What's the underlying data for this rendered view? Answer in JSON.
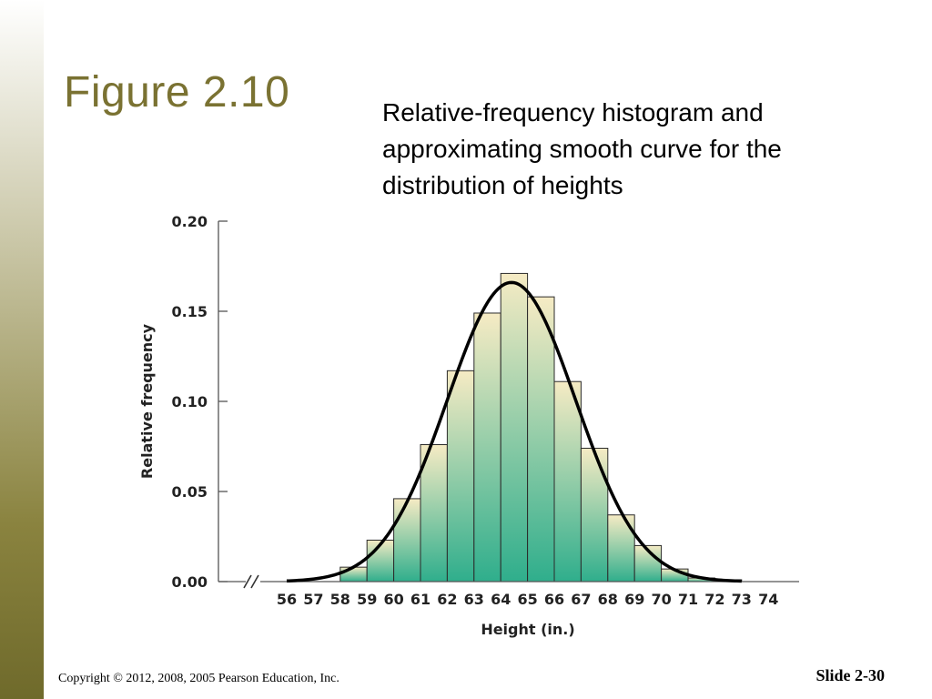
{
  "slide": {
    "title": "Figure 2.10",
    "caption": "Relative-frequency histogram and approximating smooth curve for the distribution of heights",
    "copyright": "Copyright © 2012, 2008, 2005 Pearson Education, Inc.",
    "slide_number": "Slide 2-30"
  },
  "colors": {
    "accent_band": "#8a833f",
    "title": "#7a7232",
    "bar_top": "#f6ebc4",
    "bar_bottom": "#2fae8c",
    "curve": "#000000"
  },
  "chart_data": {
    "type": "bar",
    "xlabel": "Height (in.)",
    "ylabel": "Relative frequency",
    "ylim": [
      0,
      0.2
    ],
    "xlim": [
      56,
      74
    ],
    "x_ticks": [
      56,
      57,
      58,
      59,
      60,
      61,
      62,
      63,
      64,
      65,
      66,
      67,
      68,
      69,
      70,
      71,
      72,
      73,
      74
    ],
    "y_ticks": [
      "0.00",
      "0.05",
      "0.10",
      "0.15",
      "0.20"
    ],
    "axis_break": true,
    "grid": false,
    "bins": [
      {
        "x": 58,
        "value": 0.008
      },
      {
        "x": 59,
        "value": 0.023
      },
      {
        "x": 60,
        "value": 0.046
      },
      {
        "x": 61,
        "value": 0.076
      },
      {
        "x": 62,
        "value": 0.117
      },
      {
        "x": 63,
        "value": 0.149
      },
      {
        "x": 64,
        "value": 0.171
      },
      {
        "x": 65,
        "value": 0.158
      },
      {
        "x": 66,
        "value": 0.111
      },
      {
        "x": 67,
        "value": 0.074
      },
      {
        "x": 68,
        "value": 0.037
      },
      {
        "x": 69,
        "value": 0.02
      },
      {
        "x": 70,
        "value": 0.007
      },
      {
        "x": 71,
        "value": 0.002
      },
      {
        "x": 72,
        "value": 0.001
      }
    ],
    "curve": {
      "type": "normal",
      "mean": 64.4,
      "sd": 2.4,
      "peak": 0.166,
      "x_range": [
        56,
        73
      ]
    }
  }
}
